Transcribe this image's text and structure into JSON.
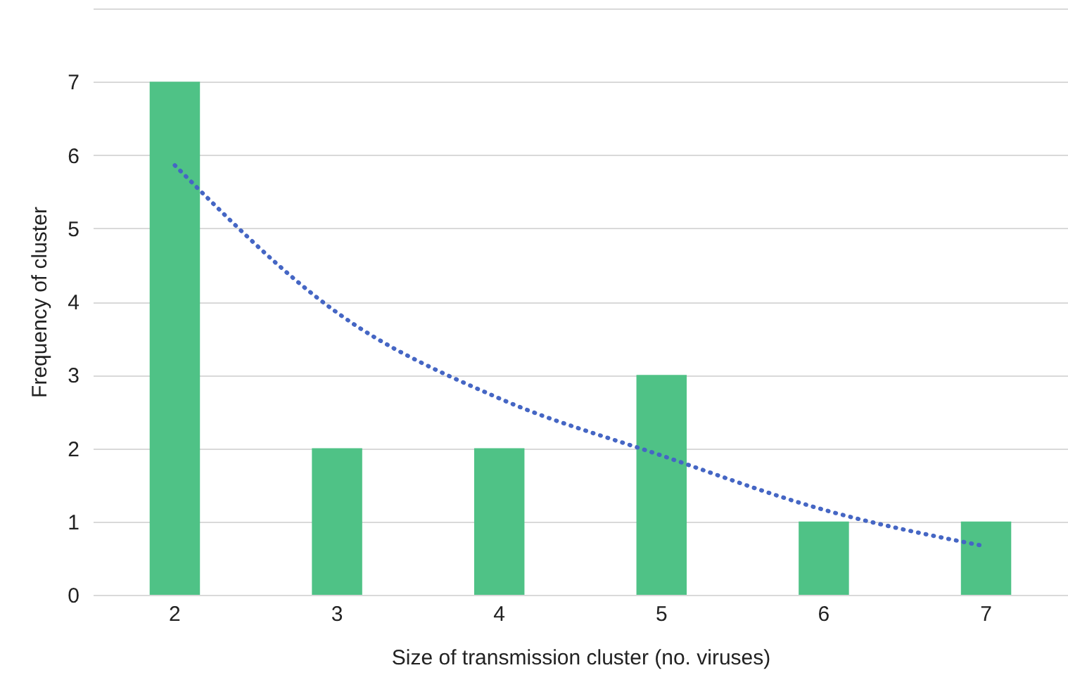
{
  "chart_data": {
    "type": "bar",
    "xlabel": "Size of transmission cluster (no. viruses)",
    "ylabel": "Frequency of cluster",
    "categories": [
      "2",
      "3",
      "4",
      "5",
      "6",
      "7"
    ],
    "series": [
      {
        "color": "#4fc286",
        "values": [
          7,
          2,
          2,
          3,
          1,
          1
        ]
      },
      {
        "type": "line",
        "color": "#4566c4",
        "line_style": "dotted",
        "x": [
          "2",
          "3",
          "4",
          "5",
          "6",
          "7"
        ],
        "values": [
          5.86,
          3.85,
          2.68,
          1.9,
          1.16,
          0.66
        ]
      }
    ],
    "ylim": [
      0,
      8
    ],
    "yticks": [
      0,
      1,
      2,
      3,
      4,
      5,
      6,
      7,
      {
        "value": 8,
        "label": null
      }
    ],
    "grid": "y"
  }
}
